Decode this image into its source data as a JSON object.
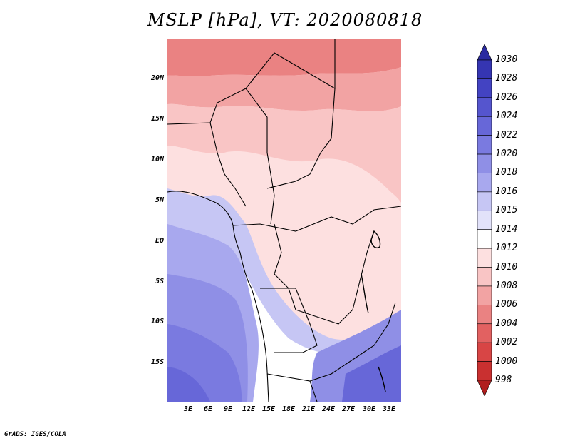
{
  "title": "MSLP [hPa], VT: 2020080818",
  "credit": "GrADS: IGES/COLA",
  "map": {
    "region": "Central and Southern Africa",
    "lat_labels": [
      "20N",
      "15N",
      "10N",
      "5N",
      "EQ",
      "5S",
      "10S",
      "15S"
    ],
    "lon_labels": [
      "3E",
      "6E",
      "9E",
      "12E",
      "15E",
      "18E",
      "21E",
      "24E",
      "27E",
      "30E",
      "33E"
    ],
    "lat_values": [
      20,
      15,
      10,
      5,
      0,
      -5,
      -10,
      -15
    ],
    "lon_values": [
      3,
      6,
      9,
      12,
      15,
      18,
      21,
      24,
      27,
      30,
      33
    ],
    "lat_range": [
      -20,
      25
    ],
    "lon_range": [
      0,
      35
    ]
  },
  "colorbar": {
    "labels": [
      "1030",
      "1028",
      "1026",
      "1024",
      "1022",
      "1020",
      "1018",
      "1016",
      "1015",
      "1014",
      "1012",
      "1010",
      "1008",
      "1006",
      "1004",
      "1002",
      "1000",
      "998"
    ],
    "colors": [
      "#2a2aa0",
      "#3535b2",
      "#4343c2",
      "#5555ce",
      "#6767d8",
      "#7a7ae0",
      "#8f8fe6",
      "#a8a8ee",
      "#c6c6f4",
      "#e2e2fa",
      "#ffffff",
      "#fde0e0",
      "#f9c5c5",
      "#f2a3a3",
      "#ea8282",
      "#e26161",
      "#d84545",
      "#c93030",
      "#b01e1e"
    ]
  }
}
